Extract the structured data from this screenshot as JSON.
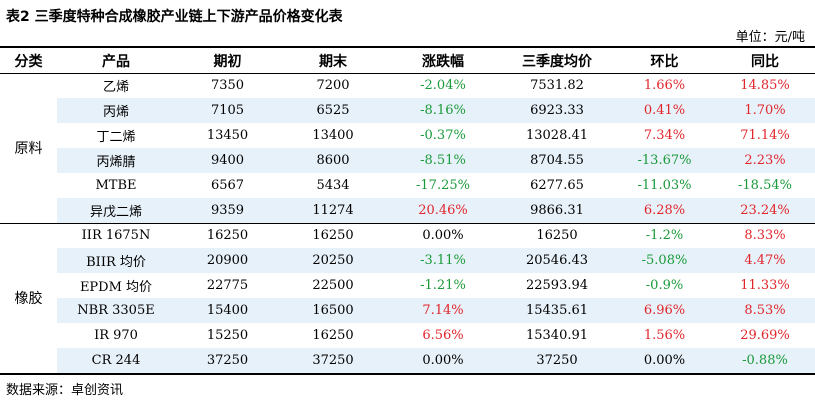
{
  "title": "表2 三季度特种合成橡胶产业链上下游产品价格变化表",
  "unit": "单位：元/吨",
  "headers": [
    "分类",
    "产品",
    "期初",
    "期末",
    "涨跌幅",
    "三季度均价",
    "环比",
    "同比"
  ],
  "groups": [
    {
      "name": "原料",
      "rows": [
        {
          "product": "乙烯",
          "start": "7350",
          "end": "7200",
          "change": "-2.04%",
          "avg": "7531.82",
          "mom": "1.66%",
          "yoy": "14.85%"
        },
        {
          "product": "丙烯",
          "start": "7105",
          "end": "6525",
          "change": "-8.16%",
          "avg": "6923.33",
          "mom": "0.41%",
          "yoy": "1.70%"
        },
        {
          "product": "丁二烯",
          "start": "13450",
          "end": "13400",
          "change": "-0.37%",
          "avg": "13028.41",
          "mom": "7.34%",
          "yoy": "71.14%"
        },
        {
          "product": "丙烯腈",
          "start": "9400",
          "end": "8600",
          "change": "-8.51%",
          "avg": "8704.55",
          "mom": "-13.67%",
          "yoy": "2.23%"
        },
        {
          "product": "MTBE",
          "start": "6567",
          "end": "5434",
          "change": "-17.25%",
          "avg": "6277.65",
          "mom": "-11.03%",
          "yoy": "-18.54%"
        },
        {
          "product": "异戊二烯",
          "start": "9359",
          "end": "11274",
          "change": "20.46%",
          "avg": "9866.31",
          "mom": "6.28%",
          "yoy": "23.24%"
        }
      ]
    },
    {
      "name": "橡胶",
      "rows": [
        {
          "product": "IIR 1675N",
          "start": "16250",
          "end": "16250",
          "change": "0.00%",
          "avg": "16250",
          "mom": "-1.2%",
          "yoy": "8.33%"
        },
        {
          "product": "BIIR 均价",
          "start": "20900",
          "end": "20250",
          "change": "-3.11%",
          "avg": "20546.43",
          "mom": "-5.08%",
          "yoy": "4.47%"
        },
        {
          "product": "EPDM 均价",
          "start": "22775",
          "end": "22500",
          "change": "-1.21%",
          "avg": "22593.94",
          "mom": "-0.9%",
          "yoy": "11.33%"
        },
        {
          "product": "NBR 3305E",
          "start": "15400",
          "end": "16500",
          "change": "7.14%",
          "avg": "15435.61",
          "mom": "6.96%",
          "yoy": "8.53%"
        },
        {
          "product": "IR 970",
          "start": "15250",
          "end": "16250",
          "change": "6.56%",
          "avg": "15340.91",
          "mom": "1.56%",
          "yoy": "29.69%"
        },
        {
          "product": "CR 244",
          "start": "37250",
          "end": "37250",
          "change": "0.00%",
          "avg": "37250",
          "mom": "0.00%",
          "yoy": "-0.88%"
        }
      ]
    }
  ],
  "source": "数据来源：卓创资讯",
  "colors": {
    "up": "#e0262c",
    "down": "#1a9a3a",
    "band": "#e7f1f9"
  }
}
